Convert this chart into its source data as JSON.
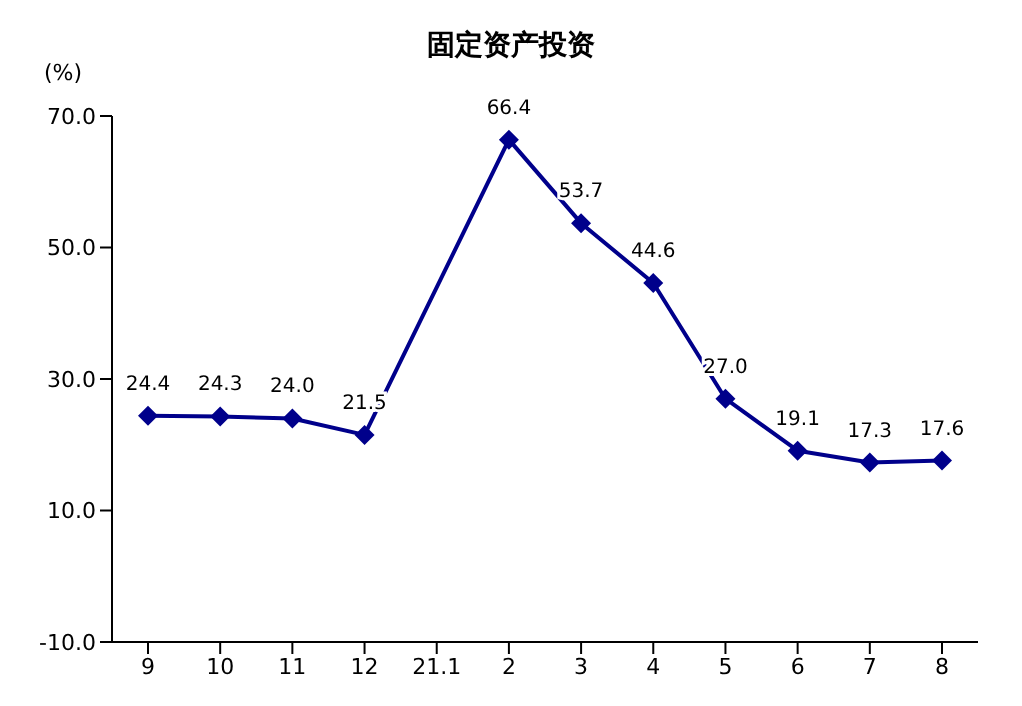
{
  "chart_data": {
    "type": "line",
    "title": "固定资产投资",
    "ylabel": "(%)",
    "categories": [
      "9",
      "10",
      "11",
      "12",
      "21.1",
      "2",
      "3",
      "4",
      "5",
      "6",
      "7",
      "8"
    ],
    "series": [
      {
        "color": "#00008b",
        "values": [
          24.4,
          24.3,
          24.0,
          21.5,
          null,
          66.4,
          53.7,
          44.6,
          27.0,
          19.1,
          17.3,
          17.6
        ],
        "value_labels": [
          "24.4",
          "24.3",
          "24.0",
          "21.5",
          null,
          "66.4",
          "53.7",
          "44.6",
          "27.0",
          "19.1",
          "17.3",
          "17.6"
        ]
      }
    ],
    "ylim": [
      -10,
      70
    ],
    "yticks": [
      {
        "value": -10,
        "label": "-10.0"
      },
      {
        "value": 10,
        "label": "10.0"
      },
      {
        "value": 30,
        "label": "30.0"
      },
      {
        "value": 50,
        "label": "50.0"
      },
      {
        "value": 70,
        "label": "70.0"
      }
    ],
    "grid": false,
    "marker": "diamond",
    "line_style": "solid"
  }
}
